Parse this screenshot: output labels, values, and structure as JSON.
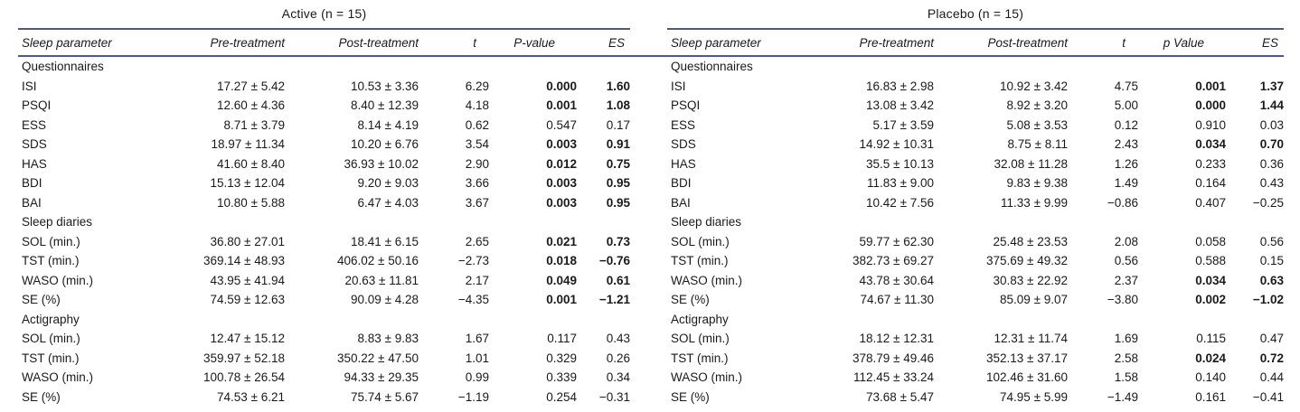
{
  "colors": {
    "rule": "#4d5a87",
    "text": "#1a1a1a",
    "background": "#ffffff"
  },
  "table": {
    "groups": [
      {
        "title": "Active (n = 15)",
        "columns": [
          "Sleep parameter",
          "Pre-treatment",
          "Post-treatment",
          "t",
          "P-value",
          "ES"
        ],
        "sections": [
          {
            "label": "Questionnaires",
            "rows": [
              {
                "param": "ISI",
                "pre": "17.27 ± 5.42",
                "post": "10.53 ± 3.36",
                "t": "6.29",
                "p": "0.000",
                "es": "1.60",
                "sig": true
              },
              {
                "param": "PSQI",
                "pre": "12.60 ± 4.36",
                "post": "8.40 ± 12.39",
                "t": "4.18",
                "p": "0.001",
                "es": "1.08",
                "sig": true
              },
              {
                "param": "ESS",
                "pre": "8.71 ± 3.79",
                "post": "8.14 ± 4.19",
                "t": "0.62",
                "p": "0.547",
                "es": "0.17",
                "sig": false
              },
              {
                "param": "SDS",
                "pre": "18.97 ± 11.34",
                "post": "10.20 ± 6.76",
                "t": "3.54",
                "p": "0.003",
                "es": "0.91",
                "sig": true
              },
              {
                "param": "HAS",
                "pre": "41.60 ± 8.40",
                "post": "36.93 ± 10.02",
                "t": "2.90",
                "p": "0.012",
                "es": "0.75",
                "sig": true
              },
              {
                "param": "BDI",
                "pre": "15.13 ± 12.04",
                "post": "9.20 ± 9.03",
                "t": "3.66",
                "p": "0.003",
                "es": "0.95",
                "sig": true
              },
              {
                "param": "BAI",
                "pre": "10.80 ± 5.88",
                "post": "6.47 ± 4.03",
                "t": "3.67",
                "p": "0.003",
                "es": "0.95",
                "sig": true
              }
            ]
          },
          {
            "label": "Sleep diaries",
            "rows": [
              {
                "param": "SOL (min.)",
                "pre": "36.80 ± 27.01",
                "post": "18.41 ± 6.15",
                "t": "2.65",
                "p": "0.021",
                "es": "0.73",
                "sig": true
              },
              {
                "param": "TST (min.)",
                "pre": "369.14 ± 48.93",
                "post": "406.02 ± 50.16",
                "t": "−2.73",
                "p": "0.018",
                "es": "−0.76",
                "sig": true
              },
              {
                "param": "WASO (min.)",
                "pre": "43.95 ± 41.94",
                "post": "20.63 ± 11.81",
                "t": "2.17",
                "p": "0.049",
                "es": "0.61",
                "sig": true
              },
              {
                "param": "SE (%)",
                "pre": "74.59 ± 12.63",
                "post": "90.09 ± 4.28",
                "t": "−4.35",
                "p": "0.001",
                "es": "−1.21",
                "sig": true
              }
            ]
          },
          {
            "label": "Actigraphy",
            "rows": [
              {
                "param": "SOL (min.)",
                "pre": "12.47 ± 15.12",
                "post": "8.83 ± 9.83",
                "t": "1.67",
                "p": "0.117",
                "es": "0.43",
                "sig": false
              },
              {
                "param": "TST (min.)",
                "pre": "359.97 ± 52.18",
                "post": "350.22 ± 47.50",
                "t": "1.01",
                "p": "0.329",
                "es": "0.26",
                "sig": false
              },
              {
                "param": "WASO (min.)",
                "pre": "100.78 ± 26.54",
                "post": "94.33 ± 29.35",
                "t": "0.99",
                "p": "0.339",
                "es": "0.34",
                "sig": false
              },
              {
                "param": "SE (%)",
                "pre": "74.53 ± 6.21",
                "post": "75.74 ± 5.67",
                "t": "−1.19",
                "p": "0.254",
                "es": "−0.31",
                "sig": false
              }
            ]
          }
        ]
      },
      {
        "title": "Placebo (n = 15)",
        "columns": [
          "Sleep parameter",
          "Pre-treatment",
          "Post-treatment",
          "t",
          "p Value",
          "ES"
        ],
        "sections": [
          {
            "label": "Questionnaires",
            "rows": [
              {
                "param": "ISI",
                "pre": "16.83 ± 2.98",
                "post": "10.92 ± 3.42",
                "t": "4.75",
                "p": "0.001",
                "es": "1.37",
                "sig": true
              },
              {
                "param": "PSQI",
                "pre": "13.08 ± 3.42",
                "post": "8.92 ± 3.20",
                "t": "5.00",
                "p": "0.000",
                "es": "1.44",
                "sig": true
              },
              {
                "param": "ESS",
                "pre": "5.17 ± 3.59",
                "post": "5.08 ± 3.53",
                "t": "0.12",
                "p": "0.910",
                "es": "0.03",
                "sig": false
              },
              {
                "param": "SDS",
                "pre": "14.92 ± 10.31",
                "post": "8.75 ± 8.11",
                "t": "2.43",
                "p": "0.034",
                "es": "0.70",
                "sig": true
              },
              {
                "param": "HAS",
                "pre": "35.5 ± 10.13",
                "post": "32.08 ± 11.28",
                "t": "1.26",
                "p": "0.233",
                "es": "0.36",
                "sig": false
              },
              {
                "param": "BDI",
                "pre": "11.83 ± 9.00",
                "post": "9.83 ± 9.38",
                "t": "1.49",
                "p": "0.164",
                "es": "0.43",
                "sig": false
              },
              {
                "param": "BAI",
                "pre": "10.42 ± 7.56",
                "post": "11.33 ± 9.99",
                "t": "−0.86",
                "p": "0.407",
                "es": "−0.25",
                "sig": false
              }
            ]
          },
          {
            "label": "Sleep diaries",
            "rows": [
              {
                "param": "SOL (min.)",
                "pre": "59.77 ± 62.30",
                "post": "25.48 ± 23.53",
                "t": "2.08",
                "p": "0.058",
                "es": "0.56",
                "sig": false
              },
              {
                "param": "TST (min.)",
                "pre": "382.73 ± 69.27",
                "post": "375.69 ± 49.32",
                "t": "0.56",
                "p": "0.588",
                "es": "0.15",
                "sig": false
              },
              {
                "param": "WASO (min.)",
                "pre": "43.78 ± 30.64",
                "post": "30.83 ± 22.92",
                "t": "2.37",
                "p": "0.034",
                "es": "0.63",
                "sig": true
              },
              {
                "param": "SE (%)",
                "pre": "74.67 ± 11.30",
                "post": "85.09 ± 9.07",
                "t": "−3.80",
                "p": "0.002",
                "es": "−1.02",
                "sig": true
              }
            ]
          },
          {
            "label": "Actigraphy",
            "rows": [
              {
                "param": "SOL (min.)",
                "pre": "18.12 ± 12.31",
                "post": "12.31 ± 11.74",
                "t": "1.69",
                "p": "0.115",
                "es": "0.47",
                "sig": false
              },
              {
                "param": "TST (min.)",
                "pre": "378.79 ± 49.46",
                "post": "352.13 ± 37.17",
                "t": "2.58",
                "p": "0.024",
                "es": "0.72",
                "sig": true
              },
              {
                "param": "WASO (min.)",
                "pre": "112.45 ± 33.24",
                "post": "102.46 ± 31.60",
                "t": "1.58",
                "p": "0.140",
                "es": "0.44",
                "sig": false
              },
              {
                "param": "SE (%)",
                "pre": "73.68 ± 5.47",
                "post": "74.95 ± 5.99",
                "t": "−1.49",
                "p": "0.161",
                "es": "−0.41",
                "sig": false
              }
            ]
          }
        ]
      }
    ]
  }
}
